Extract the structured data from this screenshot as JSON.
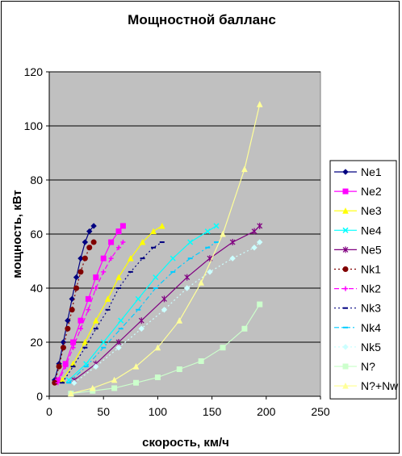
{
  "chart_data": {
    "type": "line",
    "title": "Мощностной балланс",
    "xlabel": "скорость, км/ч",
    "ylabel": "мощность, кВт",
    "xlim": [
      0,
      250
    ],
    "ylim": [
      0,
      120
    ],
    "xticks": [
      0,
      50,
      100,
      150,
      200,
      250
    ],
    "yticks": [
      0,
      20,
      40,
      60,
      80,
      100,
      120
    ],
    "grid": "horizontal",
    "legend_position": "right",
    "plot_background": "#c0c0c0",
    "series": [
      {
        "name": "Ne1",
        "color": "#000080",
        "marker": "diamond",
        "dash": "solid",
        "x": [
          5,
          9,
          13,
          17,
          21,
          25,
          29,
          33,
          37,
          41
        ],
        "y": [
          6,
          12,
          20,
          28,
          36,
          44,
          51,
          57,
          61,
          63
        ]
      },
      {
        "name": "Ne2",
        "color": "#ff00ff",
        "marker": "square",
        "dash": "solid",
        "x": [
          8,
          15,
          22,
          29,
          36,
          43,
          50,
          57,
          64,
          68
        ],
        "y": [
          6,
          12,
          20,
          28,
          36,
          44,
          51,
          57,
          61,
          63
        ]
      },
      {
        "name": "Ne3",
        "color": "#ffff00",
        "marker": "triangle",
        "dash": "solid",
        "x": [
          12,
          22,
          33,
          43,
          54,
          64,
          75,
          86,
          96,
          104
        ],
        "y": [
          6,
          12,
          20,
          28,
          36,
          44,
          51,
          57,
          61,
          63
        ]
      },
      {
        "name": "Ne4",
        "color": "#00ffff",
        "marker": "x",
        "dash": "solid",
        "x": [
          18,
          34,
          50,
          66,
          82,
          98,
          114,
          130,
          146,
          154
        ],
        "y": [
          6,
          12,
          20,
          28,
          36,
          44,
          51,
          57,
          61,
          63
        ]
      },
      {
        "name": "Ne5",
        "color": "#800080",
        "marker": "star",
        "dash": "solid",
        "x": [
          23,
          43,
          64,
          85,
          106,
          127,
          148,
          169,
          189,
          194
        ],
        "y": [
          6,
          12,
          20,
          28,
          36,
          44,
          51,
          57,
          61,
          63
        ]
      },
      {
        "name": "Nk1",
        "color": "#800000",
        "marker": "circle",
        "dash": "dot",
        "x": [
          5,
          9,
          13,
          17,
          21,
          25,
          29,
          33,
          37,
          41
        ],
        "y": [
          5,
          11,
          18,
          25,
          32,
          40,
          46,
          51,
          55,
          57
        ]
      },
      {
        "name": "Nk2",
        "color": "#ff00ff",
        "marker": "plus",
        "dash": "dash",
        "x": [
          8,
          15,
          22,
          29,
          36,
          43,
          50,
          57,
          64,
          68
        ],
        "y": [
          5,
          11,
          18,
          25,
          32,
          40,
          46,
          51,
          55,
          57
        ]
      },
      {
        "name": "Nk3",
        "color": "#000080",
        "marker": "dash",
        "dash": "dot",
        "x": [
          12,
          22,
          33,
          43,
          54,
          64,
          75,
          86,
          96,
          104
        ],
        "y": [
          5,
          11,
          18,
          25,
          32,
          40,
          46,
          51,
          55,
          57
        ]
      },
      {
        "name": "Nk4",
        "color": "#00ccff",
        "marker": "dash",
        "dash": "dashdot",
        "x": [
          18,
          34,
          50,
          66,
          82,
          98,
          114,
          130,
          146,
          154
        ],
        "y": [
          5,
          11,
          18,
          25,
          32,
          40,
          46,
          51,
          55,
          57
        ]
      },
      {
        "name": "Nk5",
        "color": "#ccffff",
        "marker": "diamond",
        "dash": "dot",
        "x": [
          23,
          43,
          64,
          85,
          106,
          127,
          148,
          169,
          189,
          194
        ],
        "y": [
          5,
          11,
          18,
          25,
          32,
          40,
          46,
          51,
          55,
          57
        ]
      },
      {
        "name": "N?",
        "color": "#ccffcc",
        "marker": "square",
        "dash": "solid",
        "x": [
          20,
          40,
          60,
          80,
          100,
          120,
          140,
          160,
          180,
          194
        ],
        "y": [
          1,
          2,
          3,
          5,
          7,
          10,
          13,
          18,
          25,
          34
        ]
      },
      {
        "name": "N?+Nw",
        "color": "#ffff99",
        "marker": "triangle",
        "dash": "solid",
        "x": [
          20,
          40,
          60,
          80,
          100,
          120,
          140,
          160,
          180,
          194
        ],
        "y": [
          1,
          3,
          6,
          11,
          18,
          28,
          42,
          60,
          84,
          108
        ]
      }
    ]
  }
}
